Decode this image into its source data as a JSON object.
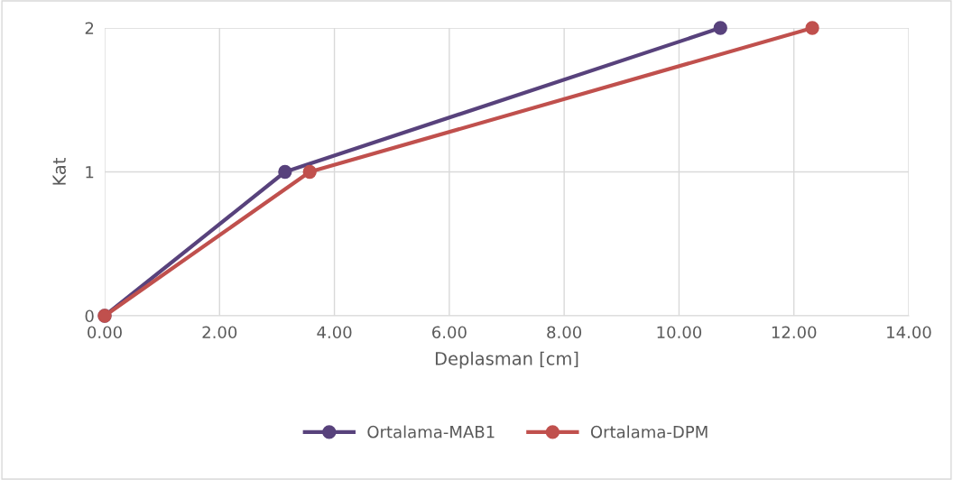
{
  "chart_data": {
    "type": "line",
    "xlabel": "Deplasman [cm]",
    "ylabel": "Kat",
    "series": [
      {
        "name": "Ortalama-MAB1",
        "color": "#58427c",
        "x": [
          0,
          3.14,
          10.72
        ],
        "values": [
          0,
          1,
          2
        ]
      },
      {
        "name": "Ortalama-DPM",
        "color": "#c0504d",
        "x": [
          0,
          3.57,
          12.32
        ],
        "values": [
          0,
          1,
          2
        ]
      }
    ],
    "xlim": [
      0,
      14
    ],
    "xticks": [
      {
        "value": 0,
        "label": "0.00"
      },
      {
        "value": 2,
        "label": "2.00"
      },
      {
        "value": 4,
        "label": "4.00"
      },
      {
        "value": 6,
        "label": "6.00"
      },
      {
        "value": 8,
        "label": "8.00"
      },
      {
        "value": 10,
        "label": "10.00"
      },
      {
        "value": 12,
        "label": "12.00"
      },
      {
        "value": 14,
        "label": "14.00"
      }
    ],
    "ylim": [
      0,
      2
    ],
    "yticks": [
      0,
      1,
      2
    ],
    "grid": true,
    "legend": "bottom",
    "marker": "circle",
    "line_style": "solid"
  }
}
